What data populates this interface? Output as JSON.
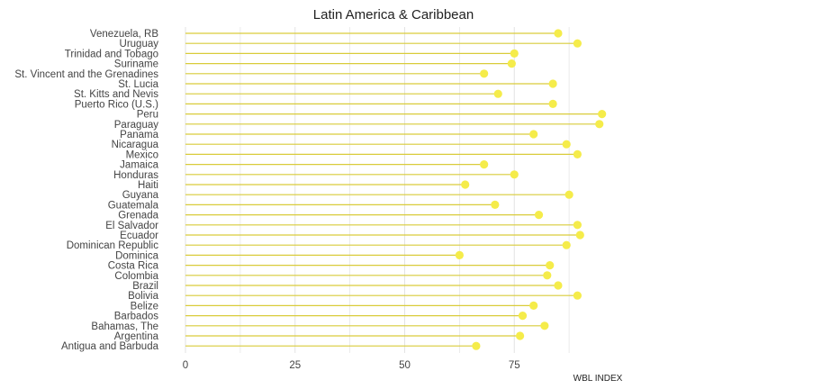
{
  "chart_data": {
    "type": "lollipop",
    "title": "Latin America & Caribbean",
    "xlabel": "WBL INDEX",
    "ylabel": "",
    "xlim": [
      0,
      100
    ],
    "x_ticks": [
      0,
      25,
      50,
      75
    ],
    "grid": true,
    "colors": {
      "stem": "#d9cc3a",
      "dot": "#f5ec4a",
      "grid": "#e3e3e3"
    },
    "categories": [
      "Venezuela, RB",
      "Uruguay",
      "Trinidad and Tobago",
      "Suriname",
      "St. Vincent and the Grenadines",
      "St. Lucia",
      "St. Kitts and Nevis",
      "Puerto Rico (U.S.)",
      "Peru",
      "Paraguay",
      "Panama",
      "Nicaragua",
      "Mexico",
      "Jamaica",
      "Honduras",
      "Haiti",
      "Guyana",
      "Guatemala",
      "Grenada",
      "El Salvador",
      "Ecuador",
      "Dominican Republic",
      "Dominica",
      "Costa Rica",
      "Colombia",
      "Brazil",
      "Bolivia",
      "Belize",
      "Barbados",
      "Bahamas, The",
      "Argentina",
      "Antigua and Barbuda"
    ],
    "values": [
      85.0,
      89.4,
      75.0,
      74.4,
      68.1,
      83.8,
      71.3,
      83.8,
      95.0,
      94.4,
      79.4,
      86.9,
      89.4,
      68.1,
      75.0,
      63.8,
      87.5,
      70.6,
      80.6,
      89.4,
      90.0,
      86.9,
      62.5,
      83.1,
      82.5,
      85.0,
      89.4,
      79.4,
      76.9,
      81.9,
      76.3,
      66.3
    ]
  }
}
